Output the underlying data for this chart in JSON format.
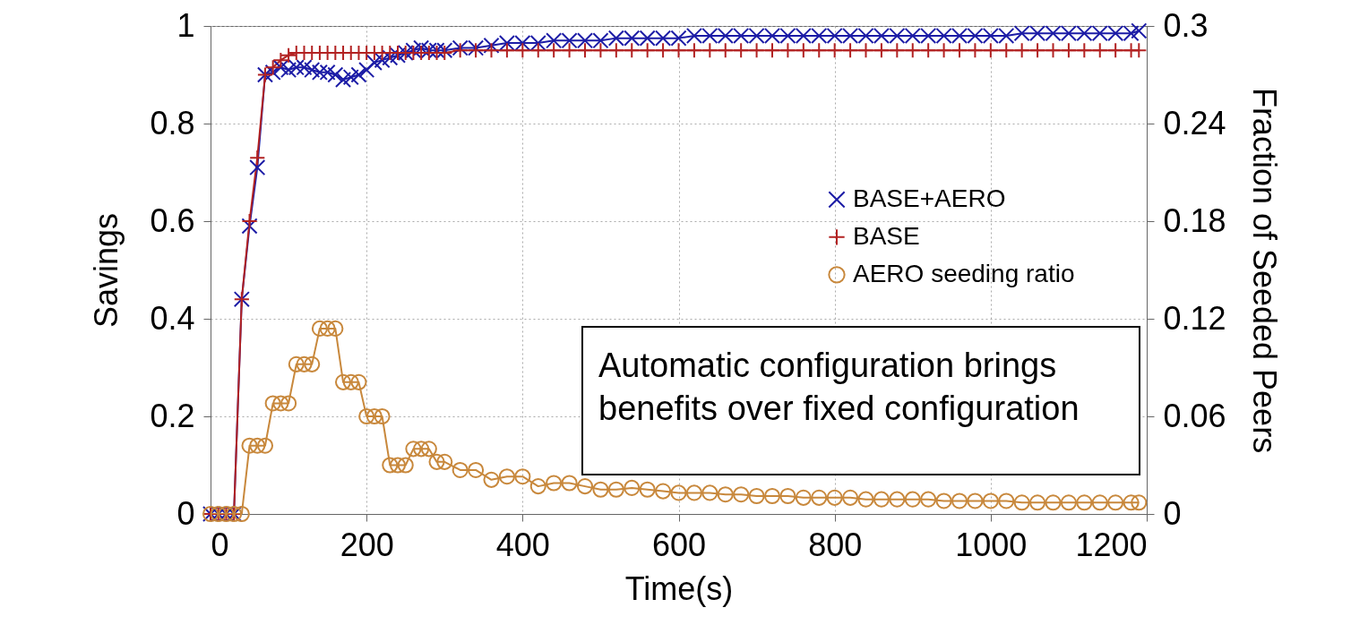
{
  "chart_data": {
    "type": "line",
    "xlabel": "Time(s)",
    "ylabel": "Savings",
    "y2label": "Fraction of Seeded Peers",
    "x": [
      0,
      10,
      20,
      30,
      40,
      50,
      60,
      70,
      80,
      90,
      100,
      110,
      120,
      130,
      140,
      150,
      160,
      170,
      180,
      190,
      200,
      210,
      220,
      230,
      240,
      250,
      260,
      270,
      280,
      290,
      300,
      320,
      340,
      360,
      380,
      400,
      420,
      440,
      460,
      480,
      500,
      520,
      540,
      560,
      580,
      600,
      620,
      640,
      660,
      680,
      700,
      720,
      740,
      760,
      780,
      800,
      820,
      840,
      860,
      880,
      900,
      920,
      940,
      960,
      980,
      1000,
      1020,
      1040,
      1060,
      1080,
      1100,
      1120,
      1140,
      1160,
      1180,
      1190
    ],
    "series": [
      {
        "name": "BASE+AERO",
        "color": "#1c1ca6",
        "marker": "cross",
        "values": [
          0,
          0,
          0,
          0,
          0.44,
          0.59,
          0.71,
          0.9,
          0.905,
          0.915,
          0.91,
          0.915,
          0.915,
          0.91,
          0.905,
          0.905,
          0.9,
          0.89,
          0.895,
          0.9,
          0.91,
          0.925,
          0.93,
          0.935,
          0.94,
          0.945,
          0.95,
          0.955,
          0.95,
          0.95,
          0.95,
          0.955,
          0.955,
          0.96,
          0.965,
          0.965,
          0.965,
          0.97,
          0.97,
          0.97,
          0.97,
          0.975,
          0.975,
          0.975,
          0.975,
          0.975,
          0.98,
          0.98,
          0.98,
          0.98,
          0.98,
          0.98,
          0.98,
          0.98,
          0.98,
          0.98,
          0.98,
          0.98,
          0.98,
          0.98,
          0.98,
          0.98,
          0.98,
          0.98,
          0.98,
          0.98,
          0.98,
          0.985,
          0.985,
          0.985,
          0.985,
          0.985,
          0.985,
          0.985,
          0.985,
          0.99
        ]
      },
      {
        "name": "BASE",
        "color": "#b22222",
        "marker": "plus",
        "values": [
          0,
          0,
          0,
          0,
          0.44,
          0.6,
          0.73,
          0.9,
          0.915,
          0.93,
          0.94,
          0.945,
          0.945,
          0.945,
          0.945,
          0.945,
          0.945,
          0.945,
          0.945,
          0.945,
          0.945,
          0.945,
          0.945,
          0.945,
          0.945,
          0.945,
          0.945,
          0.945,
          0.945,
          0.945,
          0.945,
          0.95,
          0.95,
          0.95,
          0.95,
          0.95,
          0.95,
          0.95,
          0.95,
          0.95,
          0.95,
          0.95,
          0.95,
          0.95,
          0.95,
          0.95,
          0.95,
          0.95,
          0.95,
          0.95,
          0.95,
          0.95,
          0.95,
          0.95,
          0.95,
          0.95,
          0.95,
          0.95,
          0.95,
          0.95,
          0.95,
          0.95,
          0.95,
          0.95,
          0.95,
          0.95,
          0.95,
          0.95,
          0.95,
          0.95,
          0.95,
          0.95,
          0.95,
          0.95,
          0.95,
          0.95
        ]
      },
      {
        "name": "AERO seeding ratio",
        "color": "#c8883c",
        "marker": "circle",
        "axis": "y2",
        "values": [
          0,
          0,
          0,
          0,
          0,
          0.042,
          0.042,
          0.042,
          0.068,
          0.068,
          0.068,
          0.092,
          0.092,
          0.092,
          0.114,
          0.114,
          0.114,
          0.081,
          0.081,
          0.081,
          0.06,
          0.06,
          0.06,
          0.03,
          0.03,
          0.03,
          0.04,
          0.04,
          0.04,
          0.032,
          0.032,
          0.027,
          0.027,
          0.021,
          0.023,
          0.023,
          0.017,
          0.019,
          0.019,
          0.017,
          0.015,
          0.015,
          0.016,
          0.015,
          0.014,
          0.013,
          0.013,
          0.013,
          0.012,
          0.012,
          0.011,
          0.011,
          0.011,
          0.01,
          0.01,
          0.01,
          0.01,
          0.009,
          0.009,
          0.009,
          0.009,
          0.009,
          0.008,
          0.008,
          0.008,
          0.008,
          0.008,
          0.007,
          0.007,
          0.007,
          0.007,
          0.007,
          0.007,
          0.007,
          0.007,
          0.007
        ]
      }
    ],
    "xlim": [
      0,
      1200
    ],
    "xticks": [
      0,
      200,
      400,
      600,
      800,
      1000,
      1200
    ],
    "ylim": [
      0,
      1
    ],
    "yticks": [
      0,
      0.2,
      0.4,
      0.6,
      0.8,
      1
    ],
    "y2lim": [
      0,
      0.3
    ],
    "y2ticks": [
      0,
      0.06,
      0.12,
      0.18,
      0.24,
      0.3
    ],
    "grid": true,
    "legend": "right",
    "line_style": "solid",
    "annotations": [
      "Automatic configuration brings benefits over fixed configuration"
    ]
  }
}
